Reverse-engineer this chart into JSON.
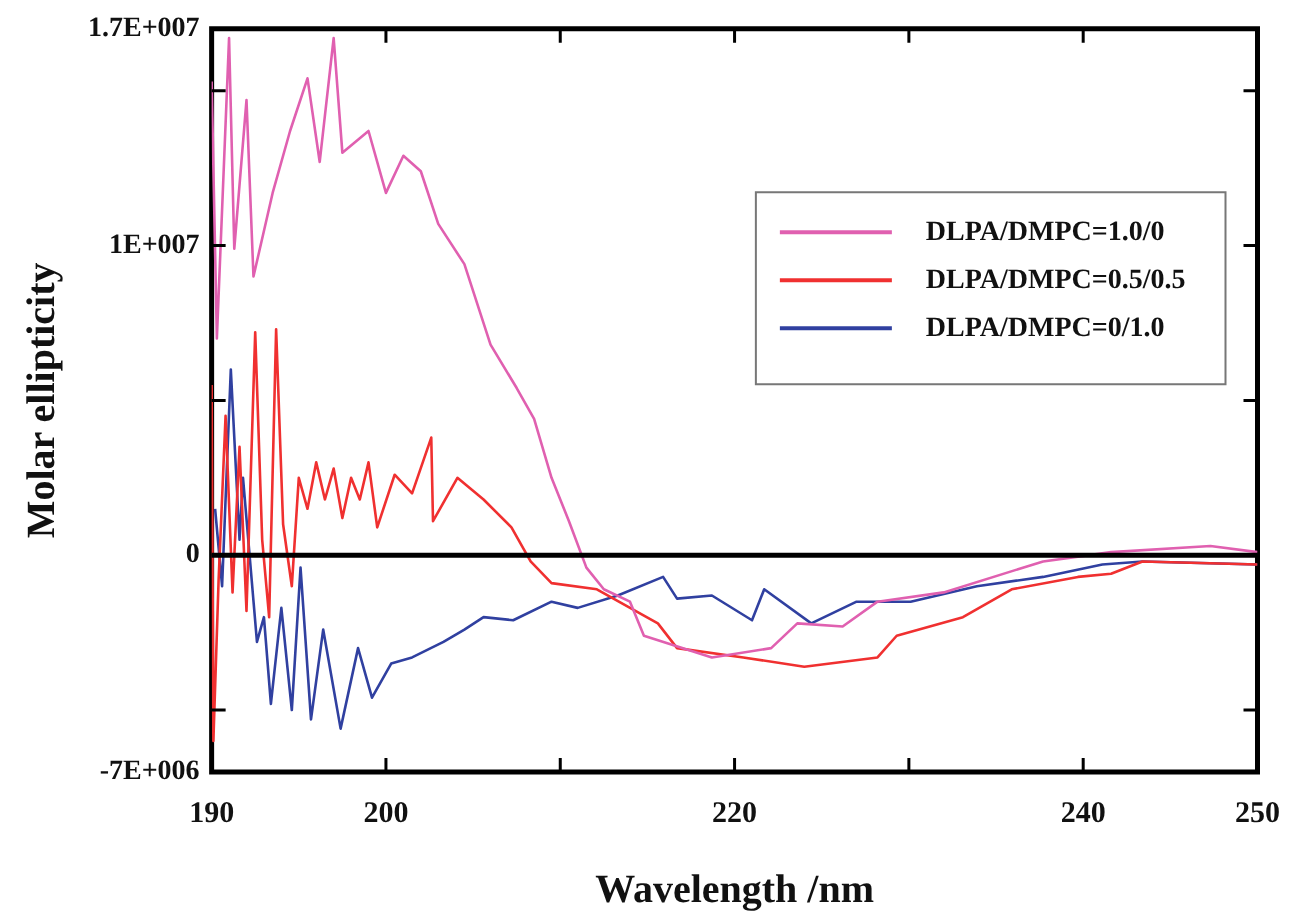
{
  "chart_data": {
    "type": "line",
    "xlabel": "Wavelength /nm",
    "ylabel": "Molar ellipticity",
    "xlim": [
      190,
      250
    ],
    "xticks": [
      190,
      200,
      {
        "value": 210,
        "label": null
      },
      220,
      {
        "value": 230,
        "label": null
      },
      240,
      250
    ],
    "ylim": [
      -7000000,
      17000000
    ],
    "yticks": [
      {
        "value": -7000000,
        "label": "-7E+006"
      },
      {
        "value": -5000000,
        "label": null
      },
      0,
      {
        "value": 5000000,
        "label": null
      },
      {
        "value": 10000000,
        "label": "1E+007"
      },
      {
        "value": 15000000,
        "label": null
      },
      {
        "value": 17000000,
        "label": "1.7E+007"
      }
    ],
    "grid": false,
    "legend": "right",
    "marker": "none",
    "line_style": "solid",
    "ref_lines": [
      {
        "axis": "y",
        "value": 0,
        "color": "#000000"
      }
    ],
    "series": [
      {
        "name": "DLPA/DMPC=1.0/0",
        "color": "#e060b0",
        "x": [
          190,
          190.3,
          191,
          191.3,
          192,
          192.4,
          193.5,
          194.5,
          195.5,
          196.2,
          197,
          197.5,
          199,
          200,
          201,
          202,
          203,
          204.5,
          206,
          207.5,
          208.5,
          209.5,
          210.5,
          211.5,
          212.5,
          214,
          214.8,
          218.7,
          222.1,
          223.6,
          226.2,
          228.2,
          232,
          237.7,
          241.6,
          247.3,
          250
        ],
        "values": [
          15300000,
          7000000,
          16700000,
          9900000,
          14700000,
          9000000,
          11700000,
          13700000,
          15400000,
          12700000,
          16700000,
          13000000,
          13700000,
          11700000,
          12900000,
          12400000,
          10700000,
          9400000,
          6800000,
          5400000,
          4400000,
          2500000,
          1100000,
          -400000,
          -1100000,
          -1500000,
          -2600000,
          -3300000,
          -3000000,
          -2200000,
          -2300000,
          -1500000,
          -1200000,
          -200000,
          100000,
          300000,
          100000
        ]
      },
      {
        "name": "DLPA/DMPC=0.5/0.5",
        "color": "#f03030",
        "x": [
          190,
          190.1,
          190.4,
          190.8,
          191.2,
          191.6,
          192,
          192.5,
          192.9,
          193.3,
          193.7,
          194.1,
          194.6,
          195,
          195.5,
          196,
          196.5,
          197,
          197.5,
          198,
          198.5,
          199,
          199.5,
          200.5,
          201.5,
          202.6,
          202.7,
          204.1,
          205.6,
          207.2,
          208.3,
          209.5,
          212.1,
          215.6,
          216.7,
          220.5,
          224,
          228.2,
          229.3,
          233.1,
          235.9,
          239.7,
          241.6,
          243.4,
          250
        ],
        "values": [
          5500000,
          -6000000,
          -800000,
          4500000,
          -1200000,
          3500000,
          -1800000,
          7200000,
          500000,
          -2000000,
          7300000,
          1000000,
          -1000000,
          2500000,
          1500000,
          3000000,
          1800000,
          2800000,
          1200000,
          2500000,
          1800000,
          3000000,
          900000,
          2600000,
          2000000,
          3800000,
          1100000,
          2500000,
          1800000,
          900000,
          -200000,
          -900000,
          -1100000,
          -2200000,
          -3000000,
          -3300000,
          -3600000,
          -3300000,
          -2600000,
          -2000000,
          -1100000,
          -700000,
          -600000,
          -200000,
          -300000
        ]
      },
      {
        "name": "DLPA/DMPC=0/1.0",
        "color": "#3040a0",
        "x": [
          190.2,
          190.6,
          191.1,
          191.6,
          191.8,
          192.6,
          193,
          193.4,
          194,
          194.6,
          195.1,
          195.7,
          196.4,
          197.4,
          198.4,
          199.2,
          200.3,
          201.5,
          203.3,
          204.5,
          205.6,
          207.3,
          209.5,
          211,
          213.3,
          215.9,
          216.7,
          218.7,
          221,
          221.7,
          224.4,
          227,
          230.1,
          233.9,
          237.7,
          241.1,
          243.4,
          250
        ],
        "values": [
          1500000,
          -1000000,
          6000000,
          500000,
          2500000,
          -2800000,
          -2000000,
          -4800000,
          -1700000,
          -5000000,
          -400000,
          -5300000,
          -2400000,
          -5600000,
          -3000000,
          -4600000,
          -3500000,
          -3300000,
          -2800000,
          -2400000,
          -2000000,
          -2100000,
          -1500000,
          -1700000,
          -1300000,
          -700000,
          -1400000,
          -1300000,
          -2100000,
          -1100000,
          -2200000,
          -1500000,
          -1500000,
          -1000000,
          -700000,
          -300000,
          -200000,
          -300000
        ]
      }
    ]
  }
}
